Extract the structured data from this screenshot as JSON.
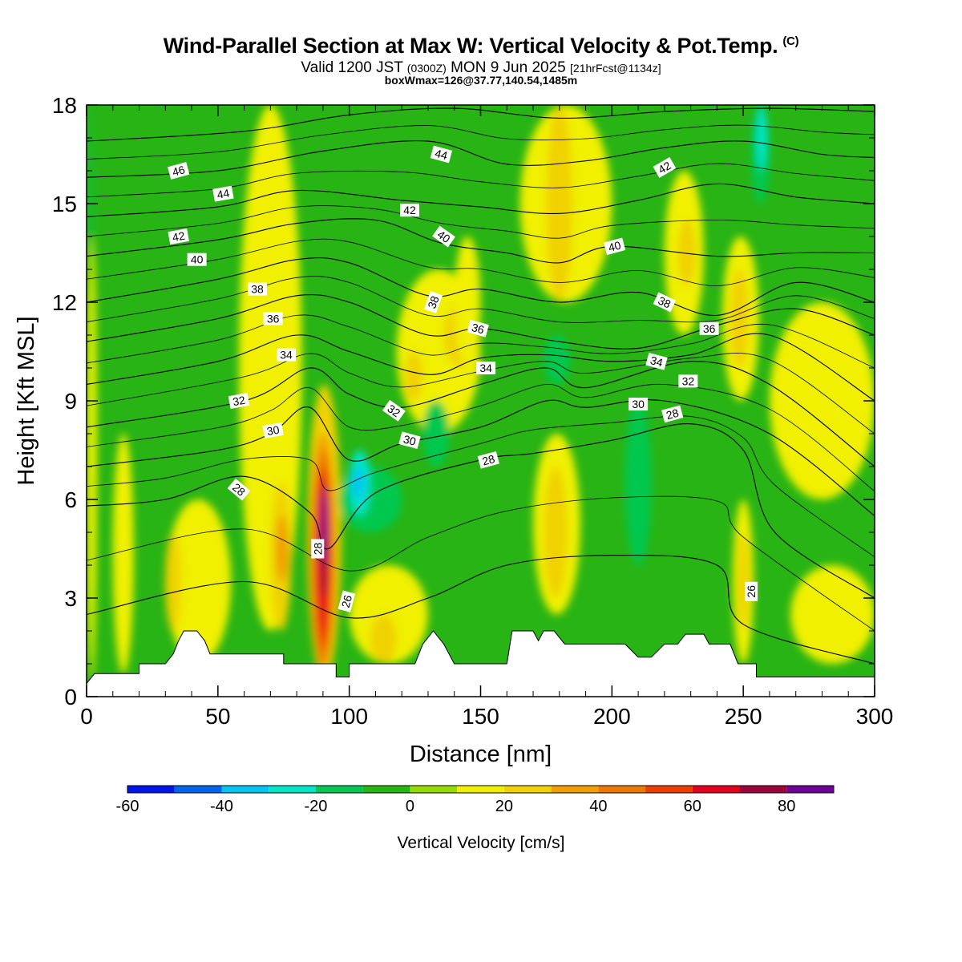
{
  "header": {
    "title": "Wind-Parallel Section at Max W: Vertical Velocity & Pot.Temp.",
    "title_tag": "(C)",
    "valid_a": "Valid 1200 JST",
    "valid_zulu": "(0300Z)",
    "valid_b": "MON 9 Jun 2025",
    "forecast": "[21hrFcst@1134z]",
    "box_info": "boxWmax=126@37.77,140.54,1485m"
  },
  "chart_data": {
    "type": "heatmap",
    "title": "Wind-Parallel Section at Max W: Vertical Velocity & Pot.Temp.",
    "xlabel": "Distance [nm]",
    "ylabel": "Height [Kft MSL]",
    "xlim": [
      0,
      300
    ],
    "ylim": [
      0,
      18
    ],
    "x_ticks": [
      0,
      50,
      100,
      150,
      200,
      250,
      300
    ],
    "y_ticks": [
      0,
      3,
      6,
      9,
      12,
      15,
      18
    ],
    "colorbar": {
      "label": "Vertical Velocity [cm/s]",
      "levels": [
        -60,
        -50,
        -40,
        -30,
        -20,
        -10,
        0,
        10,
        20,
        30,
        40,
        50,
        60,
        70,
        80,
        90
      ],
      "tick_labels": [
        "-60",
        "-40",
        "-20",
        "0",
        "20",
        "40",
        "60",
        "80"
      ],
      "colors": [
        "#0014f0",
        "#0064f0",
        "#00c8f0",
        "#00e6c8",
        "#00c850",
        "#28b414",
        "#96dc00",
        "#f0f000",
        "#f0d200",
        "#f0a000",
        "#f07800",
        "#f03c00",
        "#e6001e",
        "#a0003c",
        "#6e0096"
      ]
    },
    "background_color": "#28b414",
    "wvel_regions": [
      {
        "x": [
          1,
          2
        ],
        "y": [
          10,
          18
        ],
        "w": -20
      },
      {
        "x": [
          0,
          4
        ],
        "y": [
          0.5,
          14
        ],
        "w": 10
      },
      {
        "x": [
          10,
          18
        ],
        "y": [
          0.7,
          8
        ],
        "w": 10
      },
      {
        "x": [
          30,
          55
        ],
        "y": [
          1,
          6
        ],
        "w": 10
      },
      {
        "x": [
          58,
          82
        ],
        "y": [
          2,
          18
        ],
        "w": 10
      },
      {
        "x": [
          70,
          78
        ],
        "y": [
          2,
          6.5
        ],
        "w": 20
      },
      {
        "x": [
          72,
          77
        ],
        "y": [
          3.5,
          5.5
        ],
        "w": 30
      },
      {
        "x": [
          30,
          36
        ],
        "y": [
          2,
          5
        ],
        "w": 20
      },
      {
        "x": [
          84,
          97
        ],
        "y": [
          0.5,
          9.5
        ],
        "w": 20
      },
      {
        "x": [
          85,
          95
        ],
        "y": [
          0.8,
          8
        ],
        "w": 30
      },
      {
        "x": [
          86,
          94
        ],
        "y": [
          1,
          7.5
        ],
        "w": 40
      },
      {
        "x": [
          87,
          93
        ],
        "y": [
          1.5,
          7
        ],
        "w": 50
      },
      {
        "x": [
          88,
          92
        ],
        "y": [
          2,
          6.8
        ],
        "w": 60
      },
      {
        "x": [
          89,
          92
        ],
        "y": [
          3,
          6.5
        ],
        "w": 70
      },
      {
        "x": [
          89.5,
          91.5
        ],
        "y": [
          4,
          6.3
        ],
        "w": 80
      },
      {
        "x": [
          96,
          120
        ],
        "y": [
          5,
          7
        ],
        "w": -20
      },
      {
        "x": [
          100,
          108
        ],
        "y": [
          5.5,
          7.5
        ],
        "w": -30
      },
      {
        "x": [
          101,
          106
        ],
        "y": [
          6,
          7
        ],
        "w": -40
      },
      {
        "x": [
          100,
          130
        ],
        "y": [
          1,
          4
        ],
        "w": 10
      },
      {
        "x": [
          108,
          118
        ],
        "y": [
          1,
          2.5
        ],
        "w": 20
      },
      {
        "x": [
          118,
          150
        ],
        "y": [
          8,
          13
        ],
        "w": 10
      },
      {
        "x": [
          121,
          128
        ],
        "y": [
          9,
          10.5
        ],
        "w": 20
      },
      {
        "x": [
          128,
          138
        ],
        "y": [
          7,
          9
        ],
        "w": -20
      },
      {
        "x": [
          136,
          150
        ],
        "y": [
          10,
          12
        ],
        "w": 20
      },
      {
        "x": [
          140,
          150
        ],
        "y": [
          10,
          14
        ],
        "w": 10
      },
      {
        "x": [
          165,
          200
        ],
        "y": [
          12,
          18
        ],
        "w": 10
      },
      {
        "x": [
          175,
          185
        ],
        "y": [
          12,
          18
        ],
        "w": 20
      },
      {
        "x": [
          174,
          184
        ],
        "y": [
          9.5,
          11
        ],
        "w": -20
      },
      {
        "x": [
          170,
          188
        ],
        "y": [
          2.5,
          8
        ],
        "w": 10
      },
      {
        "x": [
          174,
          183
        ],
        "y": [
          3,
          7
        ],
        "w": 20
      },
      {
        "x": [
          205,
          215
        ],
        "y": [
          4,
          9
        ],
        "w": -20
      },
      {
        "x": [
          220,
          235
        ],
        "y": [
          11,
          16
        ],
        "w": 10
      },
      {
        "x": [
          225,
          232
        ],
        "y": [
          12.5,
          14.5
        ],
        "w": 20
      },
      {
        "x": [
          242,
          256
        ],
        "y": [
          9,
          14
        ],
        "w": 10
      },
      {
        "x": [
          245,
          252
        ],
        "y": [
          10,
          13
        ],
        "w": 20
      },
      {
        "x": [
          246,
          254
        ],
        "y": [
          1,
          6
        ],
        "w": 10
      },
      {
        "x": [
          248,
          252
        ],
        "y": [
          2,
          5
        ],
        "w": 20
      },
      {
        "x": [
          253,
          260
        ],
        "y": [
          15,
          18
        ],
        "w": -20
      },
      {
        "x": [
          255,
          259
        ],
        "y": [
          16,
          18
        ],
        "w": -30
      },
      {
        "x": [
          260,
          300
        ],
        "y": [
          6,
          12
        ],
        "w": 10
      },
      {
        "x": [
          268,
          300
        ],
        "y": [
          1,
          4
        ],
        "w": 10
      }
    ],
    "terrain": [
      [
        0,
        0.4
      ],
      [
        3,
        0.7
      ],
      [
        20,
        0.7
      ],
      [
        20,
        1
      ],
      [
        30,
        1
      ],
      [
        33,
        1.3
      ],
      [
        35,
        1.7
      ],
      [
        37,
        2
      ],
      [
        42,
        2
      ],
      [
        45,
        1.7
      ],
      [
        47,
        1.3
      ],
      [
        75,
        1.3
      ],
      [
        75,
        1
      ],
      [
        95,
        1
      ],
      [
        95,
        0.6
      ],
      [
        100,
        0.6
      ],
      [
        100,
        1
      ],
      [
        125,
        1
      ],
      [
        128,
        1.6
      ],
      [
        132,
        2
      ],
      [
        136,
        1.6
      ],
      [
        140,
        1
      ],
      [
        160,
        1
      ],
      [
        162,
        2
      ],
      [
        170,
        2
      ],
      [
        172,
        1.7
      ],
      [
        174,
        2
      ],
      [
        178,
        2
      ],
      [
        182,
        1.6
      ],
      [
        192,
        1.6
      ],
      [
        205,
        1.6
      ],
      [
        210,
        1.2
      ],
      [
        215,
        1.2
      ],
      [
        220,
        1.6
      ],
      [
        225,
        1.6
      ],
      [
        228,
        1.9
      ],
      [
        235,
        1.9
      ],
      [
        237,
        1.6
      ],
      [
        245,
        1.6
      ],
      [
        248,
        1
      ],
      [
        255,
        1
      ],
      [
        255,
        0.6
      ],
      [
        300,
        0.6
      ]
    ],
    "isentropes": [
      {
        "theta": 26,
        "x": [
          0,
          60,
          100,
          130,
          160,
          200,
          240,
          250,
          300
        ],
        "y": [
          2.5,
          3.5,
          2.4,
          3,
          4,
          4.3,
          4,
          2.2,
          1
        ]
      },
      {
        "theta": 28,
        "x": [
          0,
          30,
          60,
          85,
          92,
          110,
          150,
          170,
          200,
          230,
          250,
          262,
          300
        ],
        "y": [
          5.8,
          6,
          6.7,
          5.6,
          4.5,
          6.2,
          7.2,
          7.4,
          7.8,
          8.3,
          7.5,
          5,
          3
        ]
      },
      {
        "theta": 30,
        "x": [
          0,
          50,
          70,
          85,
          100,
          120,
          150,
          175,
          190,
          220,
          260,
          300
        ],
        "y": [
          7,
          7.5,
          8,
          8.8,
          7.2,
          7.7,
          8.2,
          9,
          8.8,
          9,
          8,
          5.5
        ]
      },
      {
        "theta": 32,
        "x": [
          0,
          60,
          85,
          100,
          120,
          150,
          175,
          190,
          230,
          260,
          300
        ],
        "y": [
          8.2,
          9,
          10,
          9.2,
          8.8,
          9.5,
          10,
          9.4,
          10.2,
          9.5,
          7
        ]
      },
      {
        "theta": 34,
        "x": [
          0,
          50,
          80,
          100,
          130,
          150,
          175,
          200,
          230,
          260,
          300
        ],
        "y": [
          9.5,
          10.2,
          11,
          10.5,
          9.8,
          10.3,
          10.4,
          10.2,
          10.4,
          11,
          9
        ]
      },
      {
        "theta": 36,
        "x": [
          0,
          50,
          80,
          100,
          130,
          150,
          180,
          210,
          240,
          270,
          300
        ],
        "y": [
          10.8,
          11.5,
          12.2,
          12,
          11,
          11.2,
          10.8,
          10.6,
          11.3,
          11.8,
          11
        ]
      },
      {
        "theta": 38,
        "x": [
          0,
          50,
          80,
          100,
          130,
          150,
          180,
          210,
          240,
          270,
          300
        ],
        "y": [
          12,
          12.7,
          13.3,
          13.2,
          12.2,
          12.4,
          12,
          12.3,
          11.6,
          12.6,
          12
        ]
      },
      {
        "theta": 40,
        "x": [
          0,
          50,
          80,
          110,
          135,
          160,
          180,
          200,
          240,
          270,
          300
        ],
        "y": [
          13.4,
          13.9,
          14.4,
          14.5,
          13.8,
          13.5,
          13.2,
          13.7,
          13.4,
          13.5,
          13.5
        ]
      },
      {
        "theta": 42,
        "x": [
          0,
          50,
          80,
          120,
          150,
          180,
          210,
          240,
          270,
          300
        ],
        "y": [
          14.6,
          14.9,
          15.4,
          15.1,
          14.9,
          14.7,
          15.1,
          15.6,
          15.2,
          15
        ]
      },
      {
        "theta": 44,
        "x": [
          0,
          50,
          90,
          130,
          160,
          190,
          220,
          250,
          280,
          300
        ],
        "y": [
          15.8,
          16,
          16.6,
          16.9,
          16.2,
          16.3,
          16.7,
          16.9,
          16.5,
          16.4
        ]
      },
      {
        "theta": 46,
        "x": [
          0,
          60,
          100,
          140,
          180,
          220,
          260,
          300
        ],
        "y": [
          16.9,
          17.2,
          17.7,
          17.9,
          17.6,
          17.8,
          17.9,
          17.8
        ]
      }
    ],
    "contour_labels": [
      {
        "text": "46",
        "x": 35,
        "y": 16.0,
        "rot": -15
      },
      {
        "text": "44",
        "x": 52,
        "y": 15.3,
        "rot": -10
      },
      {
        "text": "42",
        "x": 35,
        "y": 14.0,
        "rot": -10
      },
      {
        "text": "40",
        "x": 42,
        "y": 13.3,
        "rot": 0
      },
      {
        "text": "38",
        "x": 65,
        "y": 12.4,
        "rot": 0
      },
      {
        "text": "36",
        "x": 71,
        "y": 11.5,
        "rot": 0
      },
      {
        "text": "34",
        "x": 76,
        "y": 10.4,
        "rot": 0
      },
      {
        "text": "32",
        "x": 58,
        "y": 9.0,
        "rot": -10
      },
      {
        "text": "30",
        "x": 71,
        "y": 8.1,
        "rot": -10
      },
      {
        "text": "28",
        "x": 58,
        "y": 6.3,
        "rot": 40
      },
      {
        "text": "28",
        "x": 88,
        "y": 4.5,
        "rot": -90
      },
      {
        "text": "26",
        "x": 99,
        "y": 2.9,
        "rot": -75
      },
      {
        "text": "44",
        "x": 135,
        "y": 16.5,
        "rot": 15
      },
      {
        "text": "42",
        "x": 123,
        "y": 14.8,
        "rot": 0
      },
      {
        "text": "40",
        "x": 136,
        "y": 14.0,
        "rot": 35
      },
      {
        "text": "38",
        "x": 132,
        "y": 12.0,
        "rot": -70
      },
      {
        "text": "36",
        "x": 149,
        "y": 11.2,
        "rot": 15
      },
      {
        "text": "34",
        "x": 152,
        "y": 10.0,
        "rot": 0
      },
      {
        "text": "32",
        "x": 117,
        "y": 8.7,
        "rot": 35
      },
      {
        "text": "30",
        "x": 123,
        "y": 7.8,
        "rot": 15
      },
      {
        "text": "28",
        "x": 153,
        "y": 7.2,
        "rot": -15
      },
      {
        "text": "42",
        "x": 220,
        "y": 16.1,
        "rot": -30
      },
      {
        "text": "40",
        "x": 201,
        "y": 13.7,
        "rot": -15
      },
      {
        "text": "38",
        "x": 220,
        "y": 12.0,
        "rot": 25
      },
      {
        "text": "36",
        "x": 237,
        "y": 11.2,
        "rot": 0
      },
      {
        "text": "34",
        "x": 217,
        "y": 10.2,
        "rot": 15
      },
      {
        "text": "32",
        "x": 229,
        "y": 9.6,
        "rot": 0
      },
      {
        "text": "30",
        "x": 210,
        "y": 8.9,
        "rot": 0
      },
      {
        "text": "28",
        "x": 223,
        "y": 8.6,
        "rot": -15
      },
      {
        "text": "26",
        "x": 253,
        "y": 3.2,
        "rot": -90
      }
    ]
  }
}
